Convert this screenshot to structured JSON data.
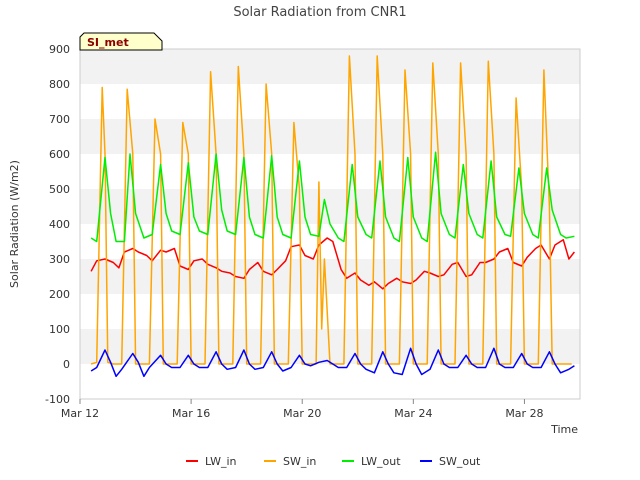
{
  "chart_data": {
    "type": "line",
    "title": "Solar Radiation from CNR1",
    "xlabel": "Time",
    "ylabel": "Solar Radiation (W/m2)",
    "badge": "SI_met",
    "ylim": [
      -100,
      900
    ],
    "yticks": [
      -100,
      0,
      100,
      200,
      300,
      400,
      500,
      600,
      700,
      800,
      900
    ],
    "xlim": [
      12,
      30
    ],
    "xticks": [
      {
        "x": 12,
        "label": "Mar 12"
      },
      {
        "x": 16,
        "label": "Mar 16"
      },
      {
        "x": 20,
        "label": "Mar 20"
      },
      {
        "x": 24,
        "label": "Mar 24"
      },
      {
        "x": 28,
        "label": "Mar 28"
      }
    ],
    "grid": "alternating horizontal bands",
    "legend_position": "bottom",
    "series": [
      {
        "name": "LW_in",
        "color": "#ff0000",
        "x": [
          12.4,
          12.6,
          12.9,
          13.2,
          13.4,
          13.6,
          13.9,
          14.1,
          14.4,
          14.6,
          14.9,
          15.1,
          15.4,
          15.6,
          15.9,
          16.1,
          16.4,
          16.6,
          16.9,
          17.1,
          17.4,
          17.6,
          17.9,
          18.1,
          18.4,
          18.6,
          18.9,
          19.1,
          19.4,
          19.6,
          19.9,
          20.1,
          20.4,
          20.6,
          20.9,
          21.1,
          21.4,
          21.6,
          21.9,
          22.1,
          22.4,
          22.6,
          22.9,
          23.1,
          23.4,
          23.6,
          23.9,
          24.1,
          24.4,
          24.6,
          24.9,
          25.1,
          25.4,
          25.6,
          25.9,
          26.1,
          26.4,
          26.6,
          26.9,
          27.1,
          27.4,
          27.6,
          27.9,
          28.1,
          28.4,
          28.6,
          28.9,
          29.1,
          29.4,
          29.6,
          29.8
        ],
        "y": [
          265,
          295,
          300,
          290,
          275,
          320,
          330,
          320,
          310,
          295,
          325,
          320,
          330,
          280,
          270,
          295,
          300,
          285,
          275,
          265,
          260,
          250,
          245,
          270,
          290,
          265,
          255,
          270,
          295,
          335,
          340,
          310,
          300,
          340,
          360,
          350,
          270,
          245,
          260,
          240,
          225,
          235,
          215,
          230,
          245,
          235,
          230,
          240,
          265,
          260,
          250,
          255,
          285,
          290,
          250,
          255,
          290,
          290,
          300,
          320,
          330,
          290,
          280,
          305,
          330,
          340,
          300,
          340,
          355,
          300,
          320
        ]
      },
      {
        "name": "SW_in",
        "color": "#ffa500",
        "x": [
          12.4,
          12.6,
          12.8,
          12.9,
          13.0,
          13.2,
          13.5,
          13.7,
          13.9,
          14.0,
          14.2,
          14.5,
          14.7,
          14.9,
          15.0,
          15.2,
          15.5,
          15.7,
          15.9,
          16.0,
          16.2,
          16.5,
          16.7,
          16.9,
          17.0,
          17.2,
          17.5,
          17.7,
          17.9,
          18.0,
          18.2,
          18.5,
          18.7,
          18.9,
          19.0,
          19.2,
          19.5,
          19.7,
          19.9,
          20.0,
          20.2,
          20.5,
          20.6,
          20.7,
          20.8,
          21.0,
          21.3,
          21.5,
          21.7,
          21.9,
          22.0,
          22.3,
          22.5,
          22.7,
          22.9,
          23.0,
          23.3,
          23.5,
          23.7,
          23.9,
          24.0,
          24.3,
          24.5,
          24.7,
          24.9,
          25.0,
          25.3,
          25.5,
          25.7,
          25.9,
          26.0,
          26.3,
          26.5,
          26.7,
          26.9,
          27.0,
          27.3,
          27.5,
          27.7,
          27.9,
          28.0,
          28.3,
          28.5,
          28.7,
          28.9,
          29.0,
          29.3,
          29.5,
          29.7
        ],
        "y": [
          0,
          5,
          790,
          600,
          5,
          0,
          0,
          785,
          600,
          0,
          0,
          0,
          700,
          600,
          0,
          0,
          0,
          690,
          600,
          0,
          0,
          0,
          835,
          600,
          0,
          0,
          0,
          850,
          600,
          0,
          0,
          0,
          800,
          600,
          0,
          0,
          0,
          690,
          500,
          0,
          0,
          0,
          520,
          100,
          300,
          0,
          0,
          0,
          880,
          600,
          0,
          0,
          0,
          880,
          600,
          0,
          0,
          0,
          840,
          600,
          0,
          0,
          0,
          860,
          600,
          0,
          0,
          0,
          860,
          600,
          0,
          0,
          0,
          865,
          600,
          0,
          0,
          0,
          760,
          500,
          0,
          0,
          0,
          840,
          450,
          0,
          0,
          0,
          0
        ]
      },
      {
        "name": "LW_out",
        "color": "#00ee00",
        "x": [
          12.4,
          12.6,
          12.9,
          13.1,
          13.3,
          13.6,
          13.8,
          14.0,
          14.3,
          14.6,
          14.9,
          15.1,
          15.3,
          15.6,
          15.9,
          16.1,
          16.3,
          16.6,
          16.9,
          17.1,
          17.3,
          17.6,
          17.9,
          18.1,
          18.3,
          18.6,
          18.9,
          19.1,
          19.3,
          19.6,
          19.9,
          20.1,
          20.3,
          20.6,
          20.8,
          21.0,
          21.3,
          21.5,
          21.8,
          22.0,
          22.3,
          22.5,
          22.8,
          23.0,
          23.3,
          23.5,
          23.8,
          24.0,
          24.3,
          24.5,
          24.8,
          25.0,
          25.3,
          25.5,
          25.8,
          26.0,
          26.3,
          26.5,
          26.8,
          27.0,
          27.3,
          27.5,
          27.8,
          28.0,
          28.3,
          28.5,
          28.8,
          29.0,
          29.3,
          29.5,
          29.8
        ],
        "y": [
          360,
          350,
          590,
          430,
          350,
          350,
          600,
          430,
          360,
          370,
          570,
          430,
          380,
          370,
          575,
          420,
          380,
          370,
          600,
          440,
          380,
          370,
          590,
          420,
          370,
          360,
          595,
          420,
          370,
          360,
          580,
          420,
          370,
          365,
          470,
          400,
          360,
          350,
          570,
          420,
          370,
          360,
          580,
          420,
          360,
          350,
          590,
          420,
          360,
          350,
          605,
          430,
          370,
          360,
          570,
          430,
          370,
          360,
          580,
          420,
          370,
          365,
          560,
          430,
          370,
          360,
          560,
          440,
          370,
          360,
          365
        ]
      },
      {
        "name": "SW_out",
        "color": "#0000ff",
        "x": [
          12.4,
          12.6,
          12.9,
          13.1,
          13.3,
          13.5,
          13.9,
          14.1,
          14.3,
          14.5,
          14.9,
          15.1,
          15.3,
          15.6,
          15.9,
          16.1,
          16.3,
          16.6,
          16.9,
          17.1,
          17.3,
          17.6,
          17.9,
          18.1,
          18.3,
          18.6,
          18.9,
          19.1,
          19.3,
          19.6,
          19.9,
          20.1,
          20.3,
          20.6,
          20.9,
          21.1,
          21.3,
          21.6,
          21.9,
          22.1,
          22.3,
          22.6,
          22.9,
          23.1,
          23.3,
          23.6,
          23.9,
          24.1,
          24.3,
          24.6,
          24.9,
          25.1,
          25.3,
          25.6,
          25.9,
          26.1,
          26.3,
          26.6,
          26.9,
          27.1,
          27.3,
          27.6,
          27.9,
          28.1,
          28.3,
          28.6,
          28.9,
          29.1,
          29.3,
          29.6,
          29.8
        ],
        "y": [
          -20,
          -10,
          40,
          5,
          -35,
          -15,
          30,
          5,
          -35,
          -10,
          25,
          0,
          -10,
          -10,
          25,
          0,
          -10,
          -10,
          35,
          0,
          -15,
          -10,
          40,
          0,
          -15,
          -10,
          35,
          0,
          -20,
          -10,
          25,
          0,
          -5,
          5,
          10,
          0,
          -10,
          -10,
          30,
          0,
          -15,
          -25,
          35,
          0,
          -25,
          -30,
          45,
          0,
          -30,
          -15,
          40,
          0,
          -10,
          -10,
          25,
          0,
          -10,
          -10,
          45,
          0,
          -10,
          -10,
          30,
          0,
          -10,
          -10,
          35,
          0,
          -25,
          -15,
          -5
        ]
      }
    ]
  }
}
